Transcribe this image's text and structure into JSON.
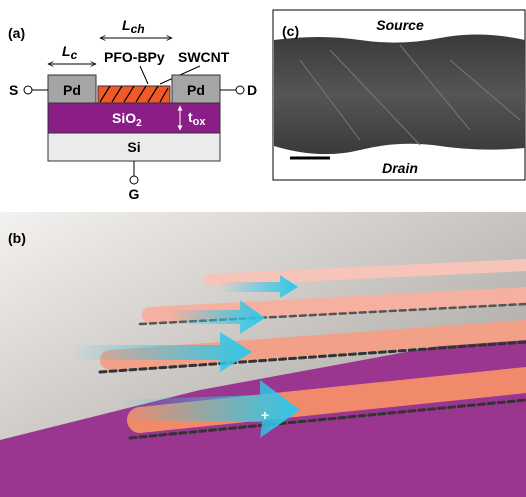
{
  "panel_a": {
    "label": "(a)",
    "channel_length": {
      "symbol": "L",
      "subscript": "ch"
    },
    "contact_length": {
      "symbol": "L",
      "subscript": "c"
    },
    "polymer": "PFO-BPy",
    "nanotube": "SWCNT",
    "source": "S",
    "drain": "D",
    "gate": "G",
    "contact_left": "Pd",
    "contact_right": "Pd",
    "oxide": {
      "symbol": "SiO",
      "subscript": "2"
    },
    "oxide_thickness": {
      "symbol": "t",
      "subscript": "ox"
    },
    "substrate": "Si"
  },
  "panel_c": {
    "label": "(c)",
    "top": "Source",
    "bottom": "Drain"
  },
  "panel_b": {
    "label": "(b)",
    "charge": "+"
  }
}
